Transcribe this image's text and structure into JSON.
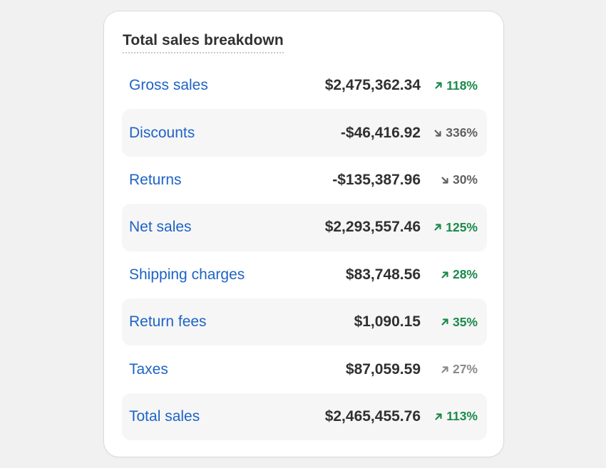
{
  "card": {
    "title": "Total sales breakdown"
  },
  "rows": [
    {
      "label": "Gross sales",
      "value": "$2,475,362.34",
      "change": "118%",
      "direction": "up",
      "tone": "green"
    },
    {
      "label": "Discounts",
      "value": "-$46,416.92",
      "change": "336%",
      "direction": "down",
      "tone": "gray"
    },
    {
      "label": "Returns",
      "value": "-$135,387.96",
      "change": "30%",
      "direction": "down",
      "tone": "gray"
    },
    {
      "label": "Net sales",
      "value": "$2,293,557.46",
      "change": "125%",
      "direction": "up",
      "tone": "green"
    },
    {
      "label": "Shipping charges",
      "value": "$83,748.56",
      "change": "28%",
      "direction": "up",
      "tone": "green"
    },
    {
      "label": "Return fees",
      "value": "$1,090.15",
      "change": "35%",
      "direction": "up",
      "tone": "green"
    },
    {
      "label": "Taxes",
      "value": "$87,059.59",
      "change": "27%",
      "direction": "up",
      "tone": "gray"
    },
    {
      "label": "Total sales",
      "value": "$2,465,455.76",
      "change": "113%",
      "direction": "up",
      "tone": "green"
    }
  ],
  "colors": {
    "link": "#1e63c5",
    "positive": "#1a8a4a",
    "neutral_down": "#616161",
    "neutral_up": "#8a8a8a",
    "row_shade": "#f6f6f6"
  },
  "icons": {
    "up": "arrow-up-right-icon",
    "down": "arrow-down-right-icon"
  }
}
